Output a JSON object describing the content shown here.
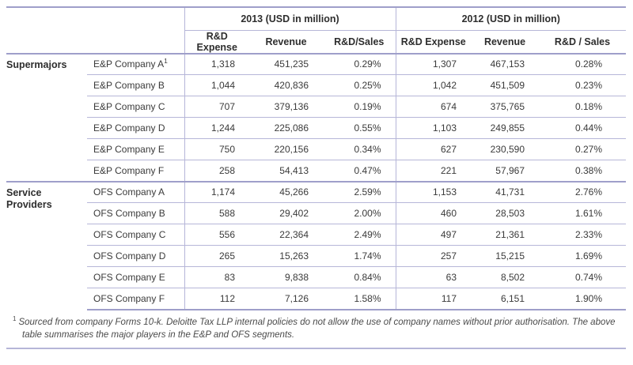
{
  "table": {
    "year_groups": [
      {
        "label": "2013 (USD in million)"
      },
      {
        "label": "2012 (USD in million)"
      }
    ],
    "column_headers_2013": [
      "R&D Expense",
      "Revenue",
      "R&D/Sales"
    ],
    "column_headers_2012": [
      "R&D Expense",
      "Revenue",
      "R&D / Sales"
    ],
    "groups": [
      {
        "label": "Supermajors",
        "rows": [
          {
            "company": "E&P Company A",
            "footnote_marker": "1",
            "values": [
              "1,318",
              "451,235",
              "0.29%",
              "1,307",
              "467,153",
              "0.28%"
            ]
          },
          {
            "company": "E&P Company B",
            "footnote_marker": "",
            "values": [
              "1,044",
              "420,836",
              "0.25%",
              "1,042",
              "451,509",
              "0.23%"
            ]
          },
          {
            "company": "E&P Company C",
            "footnote_marker": "",
            "values": [
              "707",
              "379,136",
              "0.19%",
              "674",
              "375,765",
              "0.18%"
            ]
          },
          {
            "company": "E&P Company D",
            "footnote_marker": "",
            "values": [
              "1,244",
              "225,086",
              "0.55%",
              "1,103",
              "249,855",
              "0.44%"
            ]
          },
          {
            "company": "E&P Company E",
            "footnote_marker": "",
            "values": [
              "750",
              "220,156",
              "0.34%",
              "627",
              "230,590",
              "0.27%"
            ]
          },
          {
            "company": "E&P Company F",
            "footnote_marker": "",
            "values": [
              "258",
              "54,413",
              "0.47%",
              "221",
              "57,967",
              "0.38%"
            ]
          }
        ]
      },
      {
        "label": "Service Providers",
        "rows": [
          {
            "company": "OFS Company A",
            "footnote_marker": "",
            "values": [
              "1,174",
              "45,266",
              "2.59%",
              "1,153",
              "41,731",
              "2.76%"
            ]
          },
          {
            "company": "OFS Company B",
            "footnote_marker": "",
            "values": [
              "588",
              "29,402",
              "2.00%",
              "460",
              "28,503",
              "1.61%"
            ]
          },
          {
            "company": "OFS Company C",
            "footnote_marker": "",
            "values": [
              "556",
              "22,364",
              "2.49%",
              "497",
              "21,361",
              "2.33%"
            ]
          },
          {
            "company": "OFS Company D",
            "footnote_marker": "",
            "values": [
              "265",
              "15,263",
              "1.74%",
              "257",
              "15,215",
              "1.69%"
            ]
          },
          {
            "company": "OFS Company E",
            "footnote_marker": "",
            "values": [
              "83",
              "9,838",
              "0.84%",
              "63",
              "8,502",
              "0.74%"
            ]
          },
          {
            "company": "OFS Company F",
            "footnote_marker": "",
            "values": [
              "112",
              "7,126",
              "1.58%",
              "117",
              "6,151",
              "1.90%"
            ]
          }
        ]
      }
    ],
    "footnote": {
      "marker": "1",
      "text": "Sourced from company Forms 10-k. Deloitte Tax LLP internal policies do not allow the use of company names without prior authorisation. The above table summarises the major players in the E&P and OFS segments."
    }
  },
  "colors": {
    "rule_light": "#b6b6d8",
    "rule_heavy": "#9f9fca",
    "text": "#3a3a3a"
  }
}
